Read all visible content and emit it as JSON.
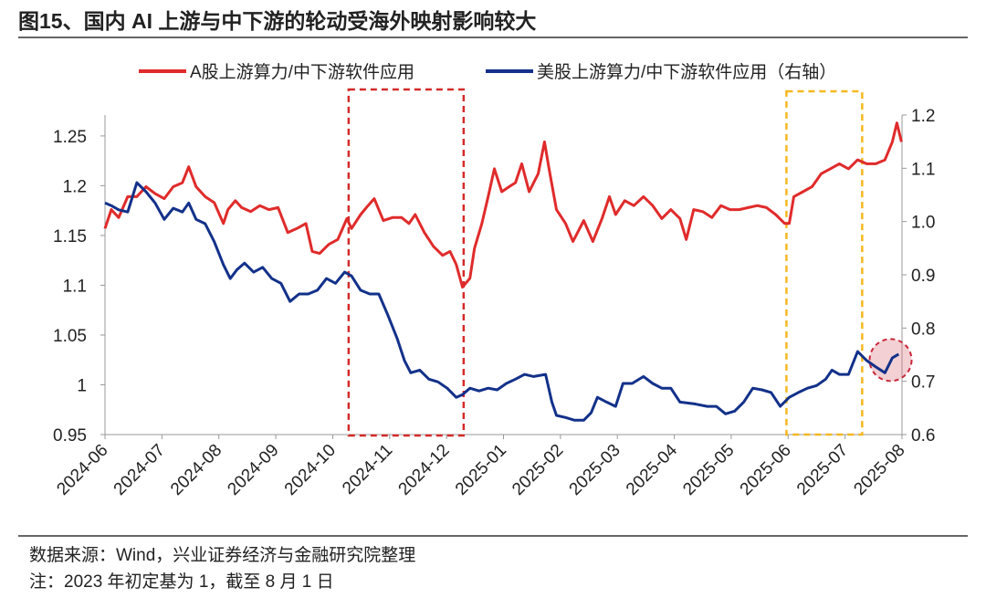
{
  "title": "图15、国内 AI 上游与中下游的轮动受海外映射影响较大",
  "source": "数据来源：Wind，兴业证券经济与金融研究院整理",
  "note": "注：2023 年初定基为 1，截至 8 月 1 日",
  "chart_data": {
    "type": "line",
    "x_unit": "months since 2024-06",
    "x_ticks": [
      "2024-06",
      "2024-07",
      "2024-08",
      "2024-09",
      "2024-10",
      "2024-11",
      "2024-12",
      "2025-01",
      "2025-02",
      "2025-03",
      "2025-04",
      "2025-05",
      "2025-06",
      "2025-07",
      "2025-08"
    ],
    "y_left": {
      "ticks": [
        "1.25",
        "1.2",
        "1.15",
        "1.1",
        "1.05",
        "1",
        "0.95"
      ],
      "range": [
        0.95,
        1.271
      ]
    },
    "y_right": {
      "ticks": [
        "1.2",
        "1.1",
        "1.0",
        "0.9",
        "0.8",
        "0.7",
        "0.6"
      ],
      "range": [
        0.6,
        1.2
      ]
    },
    "legend_placement": "top-center",
    "series": [
      {
        "name": "A股上游算力/中下游软件应用",
        "axis": "left",
        "color": "#e02b2b",
        "x": [
          0,
          0.11,
          0.24,
          0.4,
          0.56,
          0.72,
          0.88,
          1.04,
          1.2,
          1.36,
          1.47,
          1.6,
          1.76,
          1.92,
          2.08,
          2.16,
          2.29,
          2.4,
          2.56,
          2.72,
          2.88,
          3.04,
          3.21,
          3.37,
          3.53,
          3.64,
          3.77,
          3.93,
          4.09,
          4.25,
          4.33,
          4.49,
          4.62,
          4.73,
          4.89,
          5.05,
          5.21,
          5.34,
          5.45,
          5.61,
          5.77,
          5.93,
          6.06,
          6.17,
          6.28,
          6.41,
          6.49,
          6.62,
          6.73,
          6.84,
          6.97,
          7.1,
          7.21,
          7.32,
          7.45,
          7.61,
          7.72,
          7.8,
          7.93,
          8.09,
          8.22,
          8.41,
          8.57,
          8.73,
          8.86,
          8.97,
          9.13,
          9.29,
          9.46,
          9.62,
          9.78,
          9.94,
          10.1,
          10.21,
          10.34,
          10.5,
          10.66,
          10.82,
          10.98,
          11.14,
          11.3,
          11.46,
          11.62,
          11.78,
          11.94,
          12.02,
          12.1,
          12.26,
          12.42,
          12.58,
          12.74,
          12.9,
          13.06,
          13.22,
          13.38,
          13.54,
          13.7,
          13.83,
          13.91,
          13.99
        ],
        "values": [
          1.157,
          1.176,
          1.168,
          1.189,
          1.189,
          1.199,
          1.192,
          1.187,
          1.199,
          1.203,
          1.219,
          1.199,
          1.189,
          1.183,
          1.162,
          1.176,
          1.185,
          1.178,
          1.174,
          1.18,
          1.176,
          1.178,
          1.153,
          1.157,
          1.162,
          1.134,
          1.132,
          1.141,
          1.146,
          1.167,
          1.157,
          1.171,
          1.18,
          1.187,
          1.165,
          1.168,
          1.168,
          1.162,
          1.171,
          1.153,
          1.139,
          1.13,
          1.134,
          1.121,
          1.098,
          1.107,
          1.137,
          1.162,
          1.189,
          1.217,
          1.194,
          1.199,
          1.203,
          1.222,
          1.194,
          1.212,
          1.244,
          1.217,
          1.176,
          1.162,
          1.144,
          1.165,
          1.144,
          1.167,
          1.189,
          1.171,
          1.185,
          1.18,
          1.189,
          1.18,
          1.167,
          1.176,
          1.167,
          1.146,
          1.176,
          1.174,
          1.168,
          1.18,
          1.176,
          1.176,
          1.178,
          1.18,
          1.178,
          1.171,
          1.162,
          1.162,
          1.189,
          1.194,
          1.199,
          1.212,
          1.217,
          1.222,
          1.217,
          1.226,
          1.222,
          1.222,
          1.226,
          1.244,
          1.263,
          1.244
        ]
      },
      {
        "name": "美股上游算力/中下游软件应用（右轴）",
        "axis": "right",
        "color": "#13318a",
        "x": [
          0,
          0.11,
          0.24,
          0.4,
          0.56,
          0.72,
          0.88,
          1.04,
          1.2,
          1.36,
          1.47,
          1.6,
          1.76,
          1.92,
          2.08,
          2.2,
          2.32,
          2.45,
          2.61,
          2.77,
          2.93,
          3.09,
          3.25,
          3.41,
          3.57,
          3.73,
          3.89,
          4.05,
          4.21,
          4.33,
          4.49,
          4.65,
          4.81,
          4.97,
          5.13,
          5.26,
          5.37,
          5.53,
          5.69,
          5.85,
          6.01,
          6.17,
          6.28,
          6.41,
          6.57,
          6.73,
          6.89,
          7.05,
          7.21,
          7.37,
          7.53,
          7.74,
          7.85,
          7.93,
          8.09,
          8.25,
          8.41,
          8.54,
          8.65,
          8.81,
          8.97,
          9.1,
          9.26,
          9.46,
          9.62,
          9.78,
          9.94,
          10.1,
          10.34,
          10.58,
          10.74,
          10.9,
          11.06,
          11.22,
          11.38,
          11.54,
          11.7,
          11.86,
          12.02,
          12.18,
          12.34,
          12.5,
          12.66,
          12.77,
          12.9,
          13.06,
          13.22,
          13.38,
          13.54,
          13.7,
          13.83,
          13.94
        ],
        "values": [
          1.035,
          1.03,
          1.022,
          1.018,
          1.073,
          1.056,
          1.035,
          1.004,
          1.025,
          1.018,
          1.035,
          1.004,
          0.996,
          0.962,
          0.919,
          0.893,
          0.91,
          0.922,
          0.905,
          0.914,
          0.893,
          0.884,
          0.85,
          0.864,
          0.864,
          0.871,
          0.893,
          0.884,
          0.905,
          0.898,
          0.871,
          0.864,
          0.864,
          0.824,
          0.781,
          0.739,
          0.716,
          0.721,
          0.704,
          0.699,
          0.687,
          0.67,
          0.675,
          0.687,
          0.682,
          0.687,
          0.684,
          0.696,
          0.704,
          0.713,
          0.709,
          0.713,
          0.661,
          0.636,
          0.632,
          0.627,
          0.627,
          0.641,
          0.67,
          0.661,
          0.653,
          0.696,
          0.696,
          0.709,
          0.696,
          0.687,
          0.687,
          0.661,
          0.658,
          0.653,
          0.653,
          0.639,
          0.644,
          0.661,
          0.687,
          0.684,
          0.679,
          0.653,
          0.67,
          0.679,
          0.687,
          0.692,
          0.704,
          0.721,
          0.713,
          0.713,
          0.756,
          0.739,
          0.727,
          0.716,
          0.744,
          0.751
        ]
      }
    ],
    "annotations": [
      {
        "type": "dashed-box",
        "color": "#d42a2a",
        "x_range": [
          4.28,
          6.3
        ]
      },
      {
        "type": "dashed-box",
        "color": "#f5b820",
        "x_range": [
          11.97,
          13.3
        ]
      },
      {
        "type": "dashed-circle",
        "color": "#c8283a",
        "x": 13.8,
        "y_right": 0.74
      }
    ]
  }
}
